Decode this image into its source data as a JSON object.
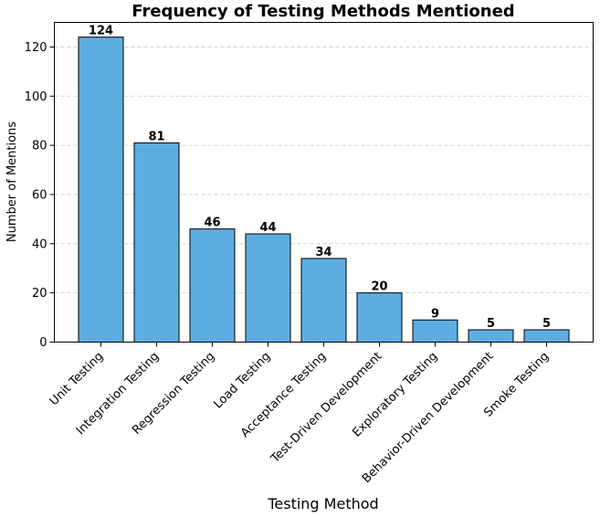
{
  "chart_data": {
    "type": "bar",
    "title": "Frequency of Testing Methods Mentioned",
    "xlabel": "Testing Method",
    "ylabel": "Number of Mentions",
    "categories": [
      "Unit Testing",
      "Integration Testing",
      "Regression Testing",
      "Load Testing",
      "Acceptance Testing",
      "Test-Driven Development",
      "Exploratory Testing",
      "Behavior-Driven Development",
      "Smoke Testing"
    ],
    "values": [
      124,
      81,
      46,
      44,
      34,
      20,
      9,
      5,
      5
    ],
    "ylim": [
      0,
      130
    ],
    "yticks": [
      0,
      20,
      40,
      60,
      80,
      100,
      120
    ],
    "grid": "y-axis dashed",
    "bar_color": "#5dade2",
    "bar_edge_color": "#000000"
  }
}
